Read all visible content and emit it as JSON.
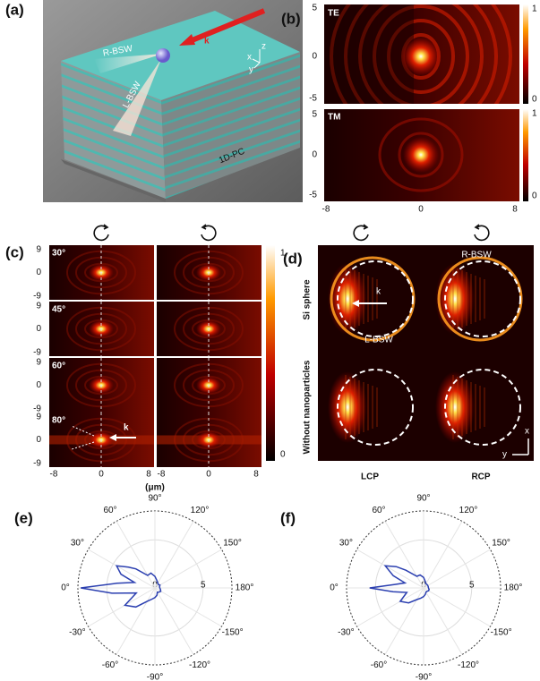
{
  "panels": {
    "a": {
      "label": "(a)",
      "beam_1": "R-BSW",
      "beam_2": "L-BSW",
      "wavevector": "k",
      "crystal": "1D-PC",
      "axes": [
        "z",
        "x",
        "y"
      ]
    },
    "b": {
      "label": "(b)",
      "maps": [
        "TE",
        "TM"
      ],
      "yticks": [
        "5",
        "0",
        "-5"
      ],
      "xticks": [
        "-8",
        "0",
        "8"
      ],
      "colorbar": [
        "1",
        "0"
      ]
    },
    "c": {
      "label": "(c)",
      "rows": [
        "30°",
        "45°",
        "60°",
        "80°"
      ],
      "yticks": [
        "9",
        "0",
        "-9"
      ],
      "xticks": [
        "-8",
        "0",
        "8"
      ],
      "xlabel": "(μm)",
      "colorbar": [
        "1",
        "0"
      ],
      "wavevector": "k"
    },
    "d": {
      "label": "(d)",
      "rows": [
        "Si sphere",
        "Without nanoparticles"
      ],
      "columns": [
        "LCP",
        "RCP"
      ],
      "beam_1": "R-BSW",
      "beam_2": "L-BSW",
      "wavevector": "k",
      "axes": [
        "x",
        "y"
      ]
    },
    "e": {
      "label": "(e)",
      "rlim": [
        0,
        8
      ],
      "rticks": [
        0,
        5
      ],
      "angle_ticks": [
        {
          "value": 90,
          "label": "90°"
        },
        {
          "value": 60,
          "label": "60°"
        },
        {
          "value": 120,
          "label": "120°"
        },
        {
          "value": 30,
          "label": "30°"
        },
        {
          "value": 150,
          "label": "150°"
        },
        {
          "value": 0,
          "label": "0°"
        },
        {
          "value": 180,
          "label": "180°"
        },
        {
          "value": -30,
          "label": "-30°"
        },
        {
          "value": -150,
          "label": "-150°"
        },
        {
          "value": -60,
          "label": "-60°"
        },
        {
          "value": -120,
          "label": "-120°"
        },
        {
          "value": -90,
          "label": "-90°"
        }
      ],
      "theta": [
        -180,
        -165,
        -150,
        -135,
        -120,
        -105,
        -90,
        -75,
        -60,
        -45,
        -30,
        -15,
        -7,
        0,
        7,
        15,
        22,
        30,
        38,
        45,
        60,
        75,
        90,
        105,
        120,
        135,
        150,
        165,
        180
      ],
      "r": [
        0.5,
        0.6,
        0.7,
        0.6,
        0.5,
        0.8,
        1.0,
        1.2,
        1.6,
        2.8,
        3.6,
        2.0,
        4.5,
        7.7,
        4.0,
        2.2,
        3.8,
        4.6,
        3.5,
        2.8,
        1.5,
        1.6,
        1.2,
        0.8,
        0.6,
        0.5,
        0.6,
        0.5,
        0.5
      ]
    },
    "f": {
      "label": "(f)",
      "rlim": [
        0,
        8
      ],
      "rticks": [
        0,
        5
      ],
      "angle_ticks": [
        {
          "value": 90,
          "label": "90°"
        },
        {
          "value": 60,
          "label": "60°"
        },
        {
          "value": 120,
          "label": "120°"
        },
        {
          "value": 30,
          "label": "30°"
        },
        {
          "value": 150,
          "label": "150°"
        },
        {
          "value": 0,
          "label": "0°"
        },
        {
          "value": 180,
          "label": "180°"
        },
        {
          "value": -30,
          "label": "-30°"
        },
        {
          "value": -150,
          "label": "-150°"
        },
        {
          "value": -60,
          "label": "-60°"
        },
        {
          "value": -120,
          "label": "-120°"
        },
        {
          "value": -90,
          "label": "-90°"
        }
      ],
      "theta": [
        -180,
        -165,
        -150,
        -135,
        -120,
        -105,
        -90,
        -75,
        -60,
        -45,
        -30,
        -15,
        -7,
        0,
        7,
        15,
        22,
        30,
        38,
        45,
        60,
        75,
        90,
        105,
        120,
        135,
        150,
        165,
        180
      ],
      "r": [
        0.5,
        0.6,
        0.6,
        0.5,
        0.5,
        0.7,
        0.9,
        1.1,
        1.4,
        2.2,
        2.8,
        1.8,
        3.2,
        5.6,
        3.0,
        2.0,
        3.4,
        4.6,
        3.6,
        2.6,
        1.4,
        1.4,
        1.1,
        0.7,
        0.5,
        0.5,
        0.5,
        0.5,
        0.5
      ]
    }
  }
}
